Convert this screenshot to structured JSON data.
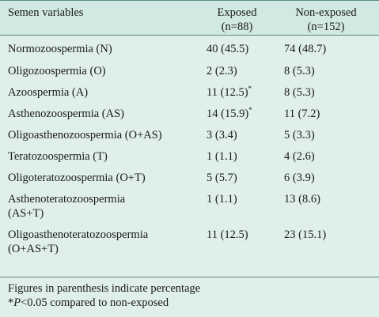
{
  "table": {
    "headers": {
      "variable": "Semen variables",
      "exposed_line1": "Exposed",
      "exposed_line2": "(n=88)",
      "nonexposed_line1": "Non-exposed",
      "nonexposed_line2": "(n=152)"
    },
    "rows": [
      {
        "label": "Normozoospermia (N)",
        "label2": "",
        "exposed": "40 (45.5)",
        "exposed_mark": "",
        "nonexposed": "74 (48.7)"
      },
      {
        "label": "Oligozoospermia (O)",
        "label2": "",
        "exposed": "2 (2.3)",
        "exposed_mark": "",
        "nonexposed": "8 (5.3)"
      },
      {
        "label": "Azoospermia (A)",
        "label2": "",
        "exposed": "11 (12.5)",
        "exposed_mark": "*",
        "nonexposed": "8 (5.3)"
      },
      {
        "label": "Asthenozoospermia (AS)",
        "label2": "",
        "exposed": "14 (15.9)",
        "exposed_mark": "*",
        "nonexposed": "11 (7.2)"
      },
      {
        "label": "Oligoasthenozoospermia (O+AS)",
        "label2": "",
        "exposed": "3 (3.4)",
        "exposed_mark": "",
        "nonexposed": "5 (3.3)"
      },
      {
        "label": "Teratozoospermia (T)",
        "label2": "",
        "exposed": "1 (1.1)",
        "exposed_mark": "",
        "nonexposed": "4 (2.6)"
      },
      {
        "label": "Oligoteratozoospermia (O+T)",
        "label2": "",
        "exposed": "5 (5.7)",
        "exposed_mark": "",
        "nonexposed": "6 (3.9)"
      },
      {
        "label": "Asthenoteratozoospermia",
        "label2": "(AS+T)",
        "exposed": "1 (1.1)",
        "exposed_mark": "",
        "nonexposed": "13 (8.6)"
      },
      {
        "label": "Oligoasthenoteratozoospermia",
        "label2": "(O+AS+T)",
        "exposed": "11 (12.5)",
        "exposed_mark": "",
        "nonexposed": "23 (15.1)"
      }
    ]
  },
  "footnotes": {
    "line1": "Figures in parenthesis indicate percentage",
    "line2_prefix": "*",
    "line2_p": "P",
    "line2_rest": "<0.05 compared to non-exposed"
  },
  "colors": {
    "background": "#dfefea",
    "header_background": "#d2e8e2",
    "rule": "#5a8a80"
  }
}
